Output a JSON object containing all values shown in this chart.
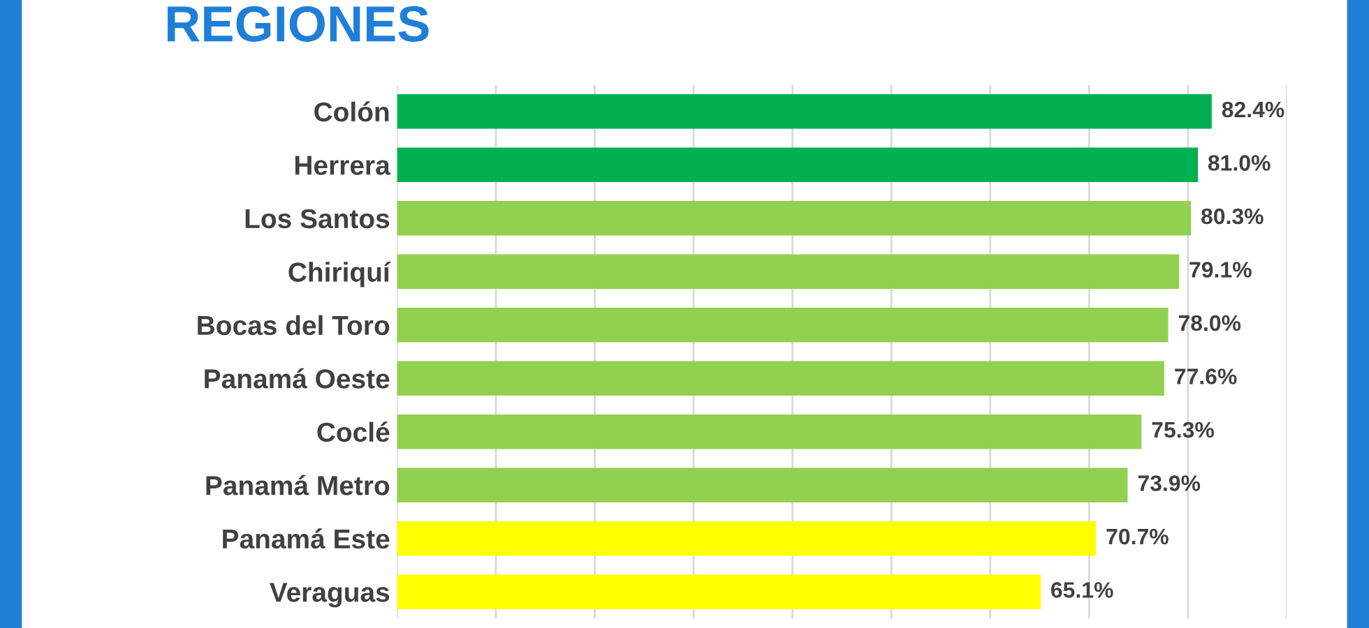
{
  "chart_data": {
    "type": "bar",
    "orientation": "horizontal",
    "title": "REGIONES",
    "categories": [
      "Colón",
      "Herrera",
      "Los Santos",
      "Chiriquí",
      "Bocas del Toro",
      "Panamá Oeste",
      "Coclé",
      "Panamá Metro",
      "Panamá Este",
      "Veraguas"
    ],
    "values": [
      82.4,
      81.0,
      80.3,
      79.1,
      78.0,
      77.6,
      75.3,
      73.9,
      70.7,
      65.1
    ],
    "colors": [
      "#00b050",
      "#00b050",
      "#92d050",
      "#92d050",
      "#92d050",
      "#92d050",
      "#92d050",
      "#92d050",
      "#ffff00",
      "#ffff00"
    ],
    "value_labels": [
      "82.4%",
      "81.0%",
      "80.3%",
      "79.1%",
      "78.0%",
      "77.6%",
      "75.3%",
      "73.9%",
      "70.7%",
      "65.1%"
    ],
    "xlim": [
      0,
      90
    ],
    "xticks": [
      {
        "value": 0,
        "label": null
      },
      {
        "value": 10,
        "label": null
      },
      {
        "value": 20,
        "label": null
      },
      {
        "value": 30,
        "label": null
      },
      {
        "value": 40,
        "label": null
      },
      {
        "value": 50,
        "label": null
      },
      {
        "value": 60,
        "label": null
      },
      {
        "value": 70,
        "label": null
      },
      {
        "value": 80,
        "label": null
      },
      {
        "value": 90,
        "label": null
      }
    ],
    "grid": "x",
    "tick_labels": "y"
  }
}
